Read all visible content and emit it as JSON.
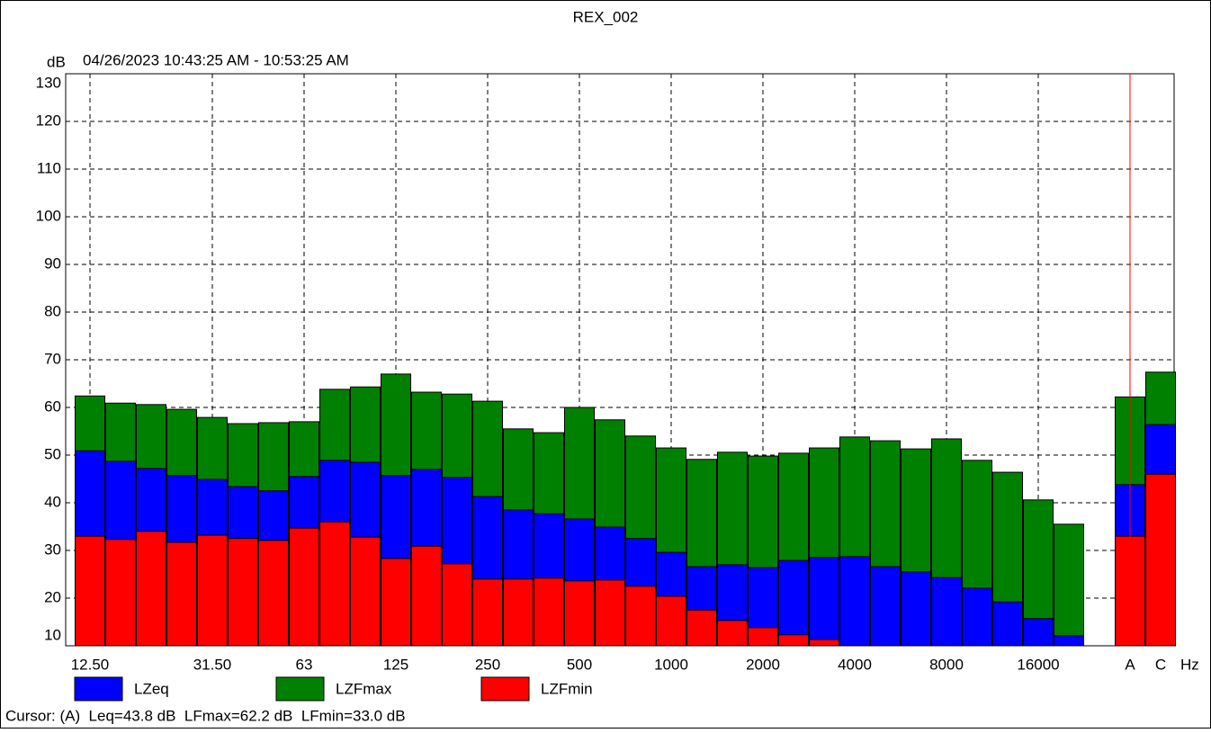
{
  "chart_data": {
    "type": "bar",
    "title": "REX_002",
    "subtitle": "04/26/2023 10:43:25 AM - 10:53:25 AM",
    "y_label": "dB",
    "x_label": "Hz",
    "categories": [
      "12.50",
      null,
      null,
      null,
      "31.50",
      null,
      null,
      "63",
      null,
      null,
      "125",
      null,
      null,
      "250",
      null,
      null,
      "500",
      null,
      null,
      "1000",
      null,
      null,
      "2000",
      null,
      null,
      "4000",
      null,
      null,
      "8000",
      null,
      null,
      "16000",
      null,
      null,
      "A",
      "C"
    ],
    "series": [
      {
        "name": "LZeq",
        "color": "#0000ff",
        "values": [
          50.9,
          48.7,
          47.2,
          45.7,
          44.9,
          43.4,
          42.5,
          45.5,
          48.9,
          48.5,
          45.7,
          47.0,
          45.3,
          41.3,
          38.5,
          37.7,
          36.6,
          34.9,
          32.5,
          29.6,
          26.6,
          27.0,
          26.4,
          27.9,
          28.5,
          28.7,
          26.6,
          25.5,
          24.3,
          22.1,
          19.2,
          15.7,
          12.1,
          null,
          43.8,
          56.4
        ]
      },
      {
        "name": "LZFmax",
        "color": "#008000",
        "values": [
          62.4,
          60.9,
          60.6,
          59.6,
          57.9,
          56.6,
          56.8,
          57.0,
          63.8,
          64.3,
          67.0,
          63.2,
          62.8,
          61.3,
          55.5,
          54.7,
          60.0,
          57.4,
          54.0,
          51.5,
          49.1,
          50.6,
          49.8,
          50.4,
          51.5,
          53.8,
          53.0,
          51.3,
          53.4,
          48.9,
          46.4,
          40.6,
          35.5,
          null,
          62.2,
          67.4
        ]
      },
      {
        "name": "LZFmin",
        "color": "#ff0000",
        "values": [
          33.0,
          32.3,
          34.0,
          31.7,
          33.2,
          32.5,
          32.1,
          34.7,
          36.0,
          32.8,
          28.3,
          30.9,
          27.2,
          24.0,
          24.0,
          24.2,
          23.6,
          23.8,
          22.5,
          20.4,
          17.5,
          15.3,
          13.8,
          12.3,
          11.3,
          null,
          null,
          null,
          null,
          null,
          null,
          null,
          null,
          null,
          33.0,
          46.0
        ]
      }
    ],
    "ylim": [
      10,
      130
    ],
    "yticks": [
      10,
      20,
      30,
      40,
      50,
      60,
      70,
      80,
      90,
      100,
      110,
      120,
      130
    ],
    "grid": true,
    "cursor_text": "Cursor: (A)  Leq=43.8 dB  LFmax=62.2 dB  LFmin=33.0 dB"
  }
}
